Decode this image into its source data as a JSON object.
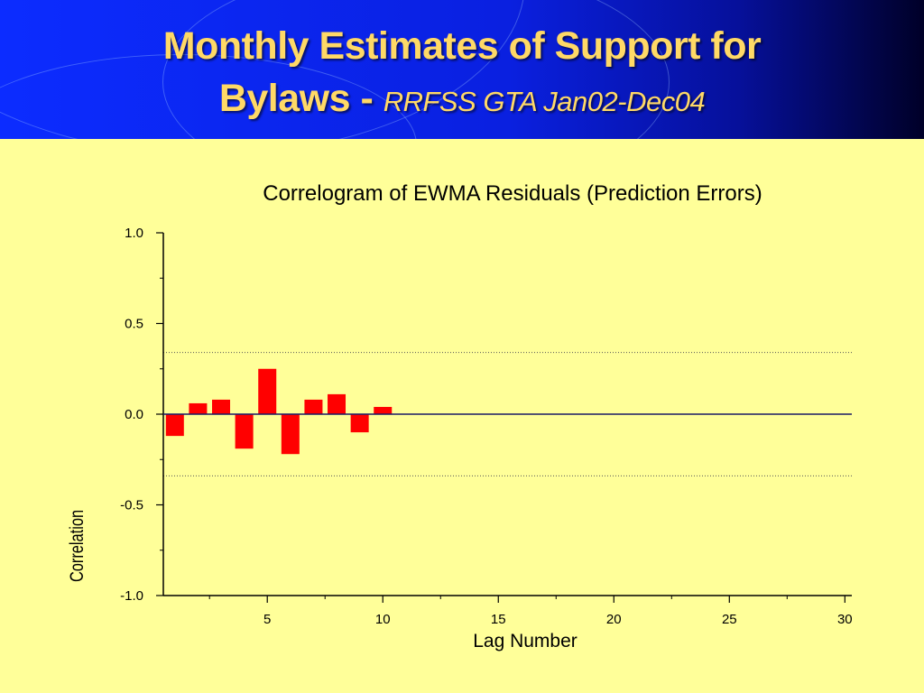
{
  "slide": {
    "title_main": "Monthly Estimates of Support for",
    "title_line2_bold": "Bylaws - ",
    "title_line2_italic": "RRFSS GTA Jan02-Dec04"
  },
  "colors": {
    "header_blue": "#0c2cff",
    "title_gold": "#ffd966",
    "background": "#ffff99",
    "bar_red": "#ff0000",
    "zero_line_navy": "#1a1a66"
  },
  "chart_data": {
    "type": "bar",
    "title": "Correlogram of EWMA Residuals (Prediction Errors)",
    "xlabel": "Lag Number",
    "ylabel": "Correlation",
    "xlim": [
      0.5,
      30.3
    ],
    "ylim": [
      -1.0,
      1.0
    ],
    "x_ticks": [
      5,
      10,
      15,
      20,
      25,
      30
    ],
    "y_ticks": [
      "1.0",
      "0.5",
      "0.0",
      "-0.5",
      "-1.0"
    ],
    "y_tick_values": [
      1.0,
      0.5,
      0.0,
      -0.5,
      -1.0
    ],
    "confidence_limits": [
      0.34,
      -0.34
    ],
    "grid": false,
    "x": [
      1,
      2,
      3,
      4,
      5,
      6,
      7,
      8,
      9,
      10
    ],
    "values": [
      -0.12,
      0.06,
      0.08,
      -0.19,
      0.25,
      -0.22,
      0.08,
      0.11,
      -0.1,
      0.04
    ]
  }
}
